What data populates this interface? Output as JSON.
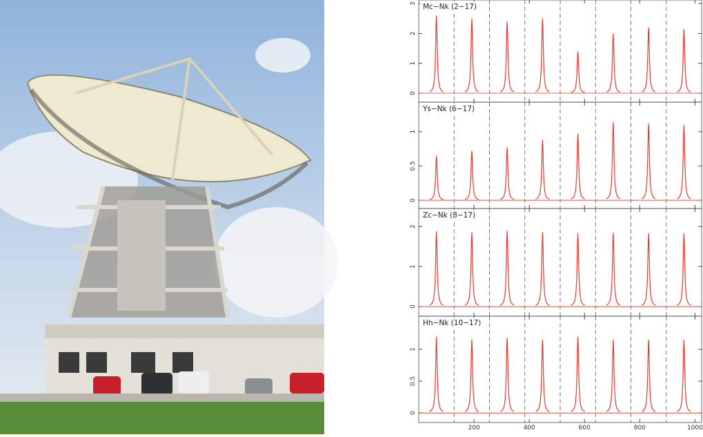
{
  "chart_data": [
    {
      "type": "spectrum",
      "title": "Mc−Nk (2−17)",
      "color": "#e8372c",
      "x": [
        64,
        192,
        320,
        448,
        576,
        704,
        832,
        960
      ],
      "values": [
        2.6,
        2.5,
        2.4,
        2.5,
        1.4,
        2.0,
        2.2,
        2.15
      ],
      "vlines": [
        128,
        256,
        384,
        512,
        640,
        768,
        896
      ],
      "xlim": [
        0,
        1024
      ],
      "xticks": [
        200,
        400,
        600,
        800,
        1000
      ],
      "ylim": [
        -0.3,
        3.12
      ],
      "yticks": [
        0,
        1,
        2,
        3
      ]
    },
    {
      "type": "spectrum",
      "title": "Ys−Nk (6−17)",
      "color": "#e8372c",
      "x": [
        64,
        192,
        320,
        448,
        576,
        704,
        832,
        960
      ],
      "values": [
        0.65,
        0.72,
        0.77,
        0.88,
        0.97,
        1.14,
        1.12,
        1.1
      ],
      "vlines": [
        128,
        256,
        384,
        512,
        640,
        768,
        896
      ],
      "xlim": [
        0,
        1024
      ],
      "xticks": [
        200,
        400,
        600,
        800,
        1000
      ],
      "ylim": [
        -0.12,
        1.43
      ],
      "yticks": [
        0,
        0.5,
        1
      ]
    },
    {
      "type": "spectrum",
      "title": "Zc−Nk (8−17)",
      "color": "#e8372c",
      "x": [
        64,
        192,
        320,
        448,
        576,
        704,
        832,
        960
      ],
      "values": [
        1.88,
        1.85,
        1.9,
        1.86,
        1.83,
        1.84,
        1.83,
        1.83
      ],
      "vlines": [
        128,
        256,
        384,
        512,
        640,
        768,
        896
      ],
      "xlim": [
        0,
        1024
      ],
      "xticks": [
        200,
        400,
        600,
        800,
        1000
      ],
      "ylim": [
        -0.24,
        2.45
      ],
      "yticks": [
        0,
        1,
        2
      ]
    },
    {
      "type": "spectrum",
      "title": "Hh−Nk (10−17)",
      "color": "#e8372c",
      "x": [
        64,
        192,
        320,
        448,
        576,
        704,
        832,
        960
      ],
      "values": [
        1.2,
        1.15,
        1.18,
        1.15,
        1.2,
        1.15,
        1.15,
        1.15
      ],
      "vlines": [
        128,
        256,
        384,
        512,
        640,
        768,
        896
      ],
      "xlim": [
        0,
        1024
      ],
      "xticks": [
        200,
        400,
        600,
        800,
        1000
      ],
      "ylim": [
        -0.15,
        1.52
      ],
      "yticks": [
        0,
        0.5,
        1
      ]
    }
  ]
}
